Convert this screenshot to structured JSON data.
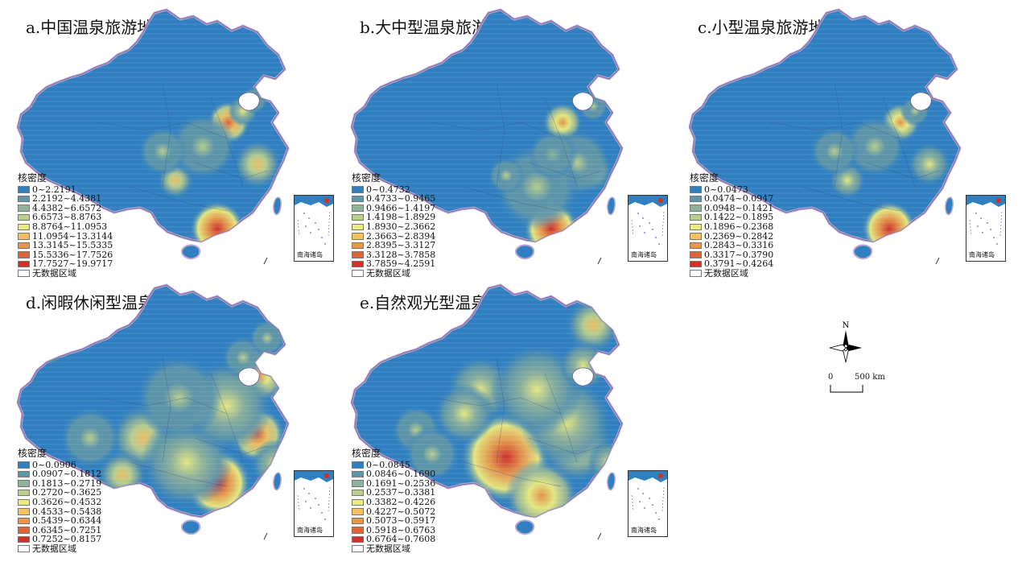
{
  "panels": [
    {
      "id": "a",
      "title": "a.中国温泉旅游地",
      "legend_title": "核密度",
      "classes": [
        "0~2.2191",
        "2.2192~4.4381",
        "4.4382~6.6572",
        "6.6573~8.8763",
        "8.8764~11.0953",
        "11.0954~13.3144",
        "13.3145~15.5335",
        "15.5336~17.7526",
        "17.7527~19.9717"
      ],
      "no_data": "无数据区域",
      "inset_label": "南海诸岛"
    },
    {
      "id": "b",
      "title": "b.大中型温泉旅游地",
      "legend_title": "核密度",
      "classes": [
        "0~0.4732",
        "0.4733~0.9465",
        "0.9466~1.4197",
        "1.4198~1.8929",
        "1.8930~2.3662",
        "2.3663~2.8394",
        "2.8395~3.3127",
        "3.3128~3.7858",
        "3.7859~4.2591"
      ],
      "no_data": "无数据区域",
      "inset_label": "南海诸岛"
    },
    {
      "id": "c",
      "title": "c.小型温泉旅游地",
      "legend_title": "核密度",
      "classes": [
        "0~0.0473",
        "0.0474~0.0947",
        "0.0948~0.1421",
        "0.1422~0.1895",
        "0.1896~0.2368",
        "0.2369~0.2842",
        "0.2843~0.3316",
        "0.3317~0.3790",
        "0.3791~0.4264"
      ],
      "no_data": "无数据区域",
      "inset_label": "南海诸岛"
    },
    {
      "id": "d",
      "title": "d.闲暇休闲型温泉旅游地",
      "legend_title": "核密度",
      "classes": [
        "0~0.0906",
        "0.0907~0.1812",
        "0.1813~0.2719",
        "0.2720~0.3625",
        "0.3626~0.4532",
        "0.4533~0.5438",
        "0.5439~0.6344",
        "0.6345~0.7251",
        "0.7252~0.8157"
      ],
      "no_data": "无数据区域",
      "inset_label": "南海诸岛"
    },
    {
      "id": "e",
      "title": "e.自然观光型温泉旅游地",
      "legend_title": "核密度",
      "classes": [
        "0~0.0845",
        "0.0846~0.1690",
        "0.1691~0.2536",
        "0.2537~0.3381",
        "0.3382~0.4226",
        "0.4227~0.5072",
        "0.5073~0.5917",
        "0.5918~0.6763",
        "0.6764~0.7608"
      ],
      "no_data": "无数据区域",
      "inset_label": "南海诸岛"
    }
  ],
  "legend_colors": [
    "#2f7fc1",
    "#5e95a8",
    "#8fb29a",
    "#bccf8c",
    "#eceb7e",
    "#f3c15f",
    "#ec9447",
    "#e0633a",
    "#d42f25"
  ],
  "north_label": "N",
  "scale": {
    "zero": "0",
    "distance": "500 km"
  }
}
